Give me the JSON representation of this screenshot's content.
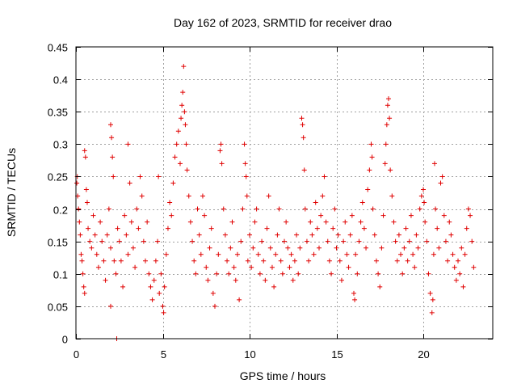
{
  "chart_data": {
    "type": "scatter",
    "title": "Day 162 of 2023, SRMTID for receiver drao",
    "xlabel": "GPS time / hours",
    "ylabel": "SRMTID / TECUs",
    "xlim": [
      0,
      24
    ],
    "ylim": [
      0,
      0.45
    ],
    "x_ticks": [
      0,
      5,
      10,
      15,
      20
    ],
    "y_ticks": [
      0,
      0.05,
      0.1,
      0.15,
      0.2,
      0.25,
      0.3,
      0.35,
      0.4,
      0.45
    ],
    "x_tick_labels": [
      "0",
      "5",
      "10",
      "15",
      "20"
    ],
    "y_tick_labels": [
      "0",
      "0.05",
      "0.1",
      "0.15",
      "0.2",
      "0.25",
      "0.3",
      "0.35",
      "0.4",
      "0.45"
    ],
    "grid": true,
    "marker": "+",
    "color": "#e00000",
    "x_data_extent": [
      0,
      22.9
    ],
    "series": [
      {
        "name": "SRMTID",
        "points": [
          [
            0.05,
            0.24
          ],
          [
            0.08,
            0.25
          ],
          [
            0.1,
            0.22
          ],
          [
            0.15,
            0.2
          ],
          [
            0.2,
            0.18
          ],
          [
            0.25,
            0.16
          ],
          [
            0.3,
            0.13
          ],
          [
            0.35,
            0.12
          ],
          [
            0.4,
            0.1
          ],
          [
            0.45,
            0.08
          ],
          [
            0.5,
            0.07
          ],
          [
            0.5,
            0.29
          ],
          [
            0.55,
            0.28
          ],
          [
            0.6,
            0.23
          ],
          [
            0.65,
            0.21
          ],
          [
            0.7,
            0.17
          ],
          [
            0.8,
            0.15
          ],
          [
            0.9,
            0.14
          ],
          [
            1.0,
            0.19
          ],
          [
            1.1,
            0.16
          ],
          [
            1.2,
            0.13
          ],
          [
            1.3,
            0.11
          ],
          [
            1.4,
            0.18
          ],
          [
            1.5,
            0.15
          ],
          [
            1.6,
            0.12
          ],
          [
            1.7,
            0.09
          ],
          [
            1.8,
            0.16
          ],
          [
            1.9,
            0.2
          ],
          [
            2.0,
            0.14
          ],
          [
            2.0,
            0.05
          ],
          [
            2.0,
            0.33
          ],
          [
            2.05,
            0.31
          ],
          [
            2.1,
            0.28
          ],
          [
            2.15,
            0.25
          ],
          [
            2.2,
            0.12
          ],
          [
            2.3,
            0.1
          ],
          [
            2.35,
            0.0
          ],
          [
            2.4,
            0.17
          ],
          [
            2.5,
            0.15
          ],
          [
            2.6,
            0.12
          ],
          [
            2.7,
            0.08
          ],
          [
            2.8,
            0.19
          ],
          [
            2.9,
            0.16
          ],
          [
            3.0,
            0.3
          ],
          [
            3.0,
            0.13
          ],
          [
            3.1,
            0.24
          ],
          [
            3.2,
            0.18
          ],
          [
            3.3,
            0.14
          ],
          [
            3.4,
            0.11
          ],
          [
            3.5,
            0.2
          ],
          [
            3.6,
            0.17
          ],
          [
            3.7,
            0.25
          ],
          [
            3.8,
            0.22
          ],
          [
            3.9,
            0.15
          ],
          [
            4.0,
            0.12
          ],
          [
            4.1,
            0.18
          ],
          [
            4.2,
            0.1
          ],
          [
            4.3,
            0.08
          ],
          [
            4.4,
            0.06
          ],
          [
            4.5,
            0.09
          ],
          [
            4.6,
            0.12
          ],
          [
            4.7,
            0.15
          ],
          [
            4.75,
            0.25
          ],
          [
            4.8,
            0.07
          ],
          [
            4.9,
            0.1
          ],
          [
            5.0,
            0.05
          ],
          [
            5.05,
            0.04
          ],
          [
            5.1,
            0.08
          ],
          [
            5.2,
            0.13
          ],
          [
            5.3,
            0.17
          ],
          [
            5.4,
            0.21
          ],
          [
            5.5,
            0.19
          ],
          [
            5.6,
            0.24
          ],
          [
            5.7,
            0.28
          ],
          [
            5.8,
            0.3
          ],
          [
            5.9,
            0.32
          ],
          [
            6.0,
            0.27
          ],
          [
            6.05,
            0.34
          ],
          [
            6.1,
            0.36
          ],
          [
            6.15,
            0.38
          ],
          [
            6.2,
            0.42
          ],
          [
            6.25,
            0.35
          ],
          [
            6.3,
            0.33
          ],
          [
            6.35,
            0.3
          ],
          [
            6.4,
            0.26
          ],
          [
            6.5,
            0.22
          ],
          [
            6.6,
            0.18
          ],
          [
            6.7,
            0.15
          ],
          [
            6.8,
            0.12
          ],
          [
            6.9,
            0.1
          ],
          [
            7.0,
            0.2
          ],
          [
            7.1,
            0.16
          ],
          [
            7.2,
            0.13
          ],
          [
            7.3,
            0.22
          ],
          [
            7.4,
            0.19
          ],
          [
            7.5,
            0.11
          ],
          [
            7.6,
            0.09
          ],
          [
            7.7,
            0.14
          ],
          [
            7.8,
            0.17
          ],
          [
            7.9,
            0.07
          ],
          [
            8.0,
            0.05
          ],
          [
            8.1,
            0.1
          ],
          [
            8.2,
            0.13
          ],
          [
            8.3,
            0.29
          ],
          [
            8.35,
            0.3
          ],
          [
            8.4,
            0.27
          ],
          [
            8.5,
            0.2
          ],
          [
            8.6,
            0.16
          ],
          [
            8.7,
            0.12
          ],
          [
            8.8,
            0.1
          ],
          [
            8.9,
            0.14
          ],
          [
            9.0,
            0.18
          ],
          [
            9.1,
            0.11
          ],
          [
            9.2,
            0.09
          ],
          [
            9.3,
            0.13
          ],
          [
            9.4,
            0.06
          ],
          [
            9.5,
            0.15
          ],
          [
            9.6,
            0.2
          ],
          [
            9.7,
            0.3
          ],
          [
            9.75,
            0.27
          ],
          [
            9.8,
            0.25
          ],
          [
            9.85,
            0.22
          ],
          [
            9.9,
            0.12
          ],
          [
            10.0,
            0.16
          ],
          [
            10.1,
            0.11
          ],
          [
            10.2,
            0.14
          ],
          [
            10.3,
            0.18
          ],
          [
            10.4,
            0.2
          ],
          [
            10.5,
            0.13
          ],
          [
            10.6,
            0.1
          ],
          [
            10.7,
            0.15
          ],
          [
            10.8,
            0.12
          ],
          [
            10.9,
            0.09
          ],
          [
            11.0,
            0.17
          ],
          [
            11.1,
            0.22
          ],
          [
            11.2,
            0.14
          ],
          [
            11.3,
            0.11
          ],
          [
            11.4,
            0.08
          ],
          [
            11.5,
            0.13
          ],
          [
            11.6,
            0.16
          ],
          [
            11.7,
            0.2
          ],
          [
            11.8,
            0.12
          ],
          [
            11.9,
            0.1
          ],
          [
            12.0,
            0.15
          ],
          [
            12.1,
            0.18
          ],
          [
            12.2,
            0.14
          ],
          [
            12.3,
            0.11
          ],
          [
            12.4,
            0.13
          ],
          [
            12.5,
            0.09
          ],
          [
            12.6,
            0.12
          ],
          [
            12.7,
            0.16
          ],
          [
            12.8,
            0.1
          ],
          [
            12.9,
            0.14
          ],
          [
            13.0,
            0.34
          ],
          [
            13.05,
            0.33
          ],
          [
            13.1,
            0.31
          ],
          [
            13.15,
            0.26
          ],
          [
            13.2,
            0.2
          ],
          [
            13.3,
            0.15
          ],
          [
            13.4,
            0.12
          ],
          [
            13.5,
            0.18
          ],
          [
            13.6,
            0.16
          ],
          [
            13.7,
            0.13
          ],
          [
            13.8,
            0.21
          ],
          [
            13.9,
            0.17
          ],
          [
            14.0,
            0.14
          ],
          [
            14.1,
            0.19
          ],
          [
            14.2,
            0.22
          ],
          [
            14.3,
            0.25
          ],
          [
            14.4,
            0.18
          ],
          [
            14.5,
            0.15
          ],
          [
            14.6,
            0.12
          ],
          [
            14.7,
            0.1
          ],
          [
            14.8,
            0.17
          ],
          [
            14.9,
            0.2
          ],
          [
            15.0,
            0.14
          ],
          [
            15.1,
            0.16
          ],
          [
            15.2,
            0.12
          ],
          [
            15.3,
            0.09
          ],
          [
            15.4,
            0.15
          ],
          [
            15.5,
            0.18
          ],
          [
            15.6,
            0.13
          ],
          [
            15.7,
            0.11
          ],
          [
            15.8,
            0.16
          ],
          [
            15.9,
            0.19
          ],
          [
            16.0,
            0.07
          ],
          [
            16.05,
            0.06
          ],
          [
            16.1,
            0.13
          ],
          [
            16.2,
            0.1
          ],
          [
            16.3,
            0.15
          ],
          [
            16.4,
            0.18
          ],
          [
            16.5,
            0.21
          ],
          [
            16.6,
            0.17
          ],
          [
            16.7,
            0.14
          ],
          [
            16.8,
            0.23
          ],
          [
            16.9,
            0.26
          ],
          [
            17.0,
            0.3
          ],
          [
            17.05,
            0.28
          ],
          [
            17.1,
            0.2
          ],
          [
            17.2,
            0.16
          ],
          [
            17.3,
            0.12
          ],
          [
            17.4,
            0.1
          ],
          [
            17.5,
            0.08
          ],
          [
            17.6,
            0.14
          ],
          [
            17.7,
            0.19
          ],
          [
            17.8,
            0.27
          ],
          [
            17.85,
            0.3
          ],
          [
            17.9,
            0.33
          ],
          [
            17.95,
            0.36
          ],
          [
            18.0,
            0.37
          ],
          [
            18.05,
            0.34
          ],
          [
            18.1,
            0.26
          ],
          [
            18.2,
            0.22
          ],
          [
            18.3,
            0.18
          ],
          [
            18.4,
            0.15
          ],
          [
            18.5,
            0.12
          ],
          [
            18.6,
            0.16
          ],
          [
            18.7,
            0.13
          ],
          [
            18.8,
            0.1
          ],
          [
            18.9,
            0.14
          ],
          [
            19.0,
            0.17
          ],
          [
            19.1,
            0.12
          ],
          [
            19.2,
            0.15
          ],
          [
            19.3,
            0.19
          ],
          [
            19.4,
            0.13
          ],
          [
            19.5,
            0.11
          ],
          [
            19.6,
            0.16
          ],
          [
            19.7,
            0.14
          ],
          [
            19.8,
            0.2
          ],
          [
            19.9,
            0.22
          ],
          [
            20.0,
            0.23
          ],
          [
            20.05,
            0.21
          ],
          [
            20.1,
            0.18
          ],
          [
            20.2,
            0.15
          ],
          [
            20.3,
            0.1
          ],
          [
            20.4,
            0.07
          ],
          [
            20.5,
            0.04
          ],
          [
            20.55,
            0.06
          ],
          [
            20.6,
            0.13
          ],
          [
            20.65,
            0.27
          ],
          [
            20.7,
            0.2
          ],
          [
            20.8,
            0.17
          ],
          [
            20.9,
            0.14
          ],
          [
            21.0,
            0.24
          ],
          [
            21.1,
            0.25
          ],
          [
            21.2,
            0.19
          ],
          [
            21.3,
            0.15
          ],
          [
            21.4,
            0.12
          ],
          [
            21.5,
            0.18
          ],
          [
            21.6,
            0.16
          ],
          [
            21.7,
            0.13
          ],
          [
            21.8,
            0.11
          ],
          [
            21.9,
            0.09
          ],
          [
            22.0,
            0.12
          ],
          [
            22.1,
            0.1
          ],
          [
            22.2,
            0.14
          ],
          [
            22.3,
            0.08
          ],
          [
            22.4,
            0.13
          ],
          [
            22.5,
            0.17
          ],
          [
            22.6,
            0.2
          ],
          [
            22.7,
            0.19
          ],
          [
            22.8,
            0.15
          ],
          [
            22.9,
            0.11
          ]
        ]
      }
    ]
  }
}
